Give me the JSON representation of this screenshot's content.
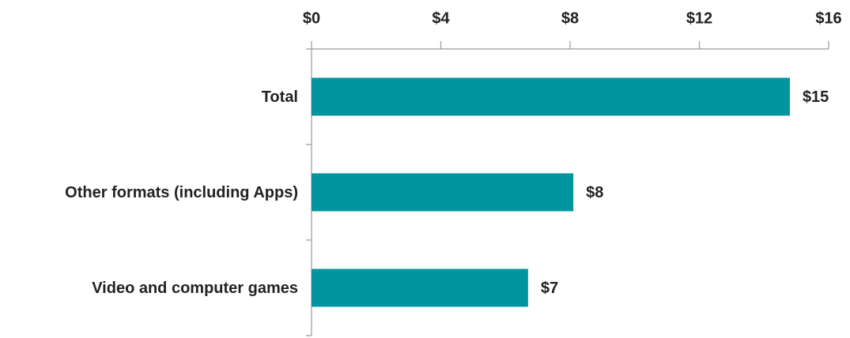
{
  "chart_data": {
    "type": "bar",
    "orientation": "horizontal",
    "categories": [
      "Total",
      "Other formats (including Apps)",
      "Video and computer games"
    ],
    "values": [
      14.8,
      8.1,
      6.7
    ],
    "value_labels": [
      "$15",
      "$8",
      "$7"
    ],
    "color": "#00959f",
    "xlim": [
      0,
      16
    ],
    "xticks": [
      {
        "value": 0,
        "label": "$0"
      },
      {
        "value": 4,
        "label": "$4"
      },
      {
        "value": 8,
        "label": "$8"
      },
      {
        "value": 12,
        "label": "$12"
      },
      {
        "value": 16,
        "label": "$16"
      }
    ],
    "grid": false
  }
}
